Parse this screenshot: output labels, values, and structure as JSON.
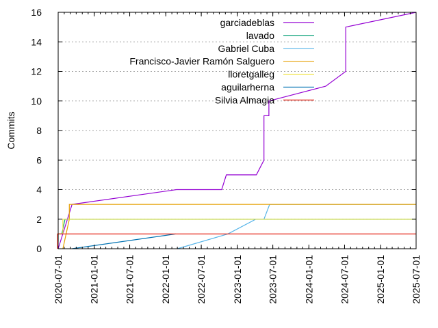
{
  "chart_data": {
    "type": "line",
    "title": "",
    "xlabel": "",
    "ylabel": "Commits",
    "ylim": [
      0,
      16
    ],
    "xlim": [
      "2020-07-01",
      "2025-07-01"
    ],
    "yticks": [
      "0",
      "2",
      "4",
      "6",
      "8",
      "10",
      "12",
      "14",
      "16"
    ],
    "xticks": [
      "2020-07-01",
      "2021-01-01",
      "2021-07-01",
      "2022-01-01",
      "2022-07-01",
      "2023-01-01",
      "2023-07-01",
      "2024-01-01",
      "2024-07-01",
      "2025-01-01",
      "2025-07-01"
    ],
    "grid": "horizontal dotted",
    "legend_placement": "top-center",
    "series": [
      {
        "name": "garciadeblas",
        "color": "#9400d3",
        "points": [
          [
            "2020-07-01",
            0
          ],
          [
            "2020-09-10",
            3
          ],
          [
            "2022-02-25",
            4
          ],
          [
            "2022-10-13",
            4
          ],
          [
            "2022-11-06",
            5
          ],
          [
            "2023-04-08",
            5
          ],
          [
            "2023-05-17",
            6
          ],
          [
            "2023-05-17",
            9
          ],
          [
            "2023-06-11",
            9
          ],
          [
            "2023-06-11",
            10
          ],
          [
            "2024-03-27",
            11
          ],
          [
            "2024-07-07",
            12
          ],
          [
            "2024-07-07",
            15
          ],
          [
            "2025-07-01",
            16
          ]
        ]
      },
      {
        "name": "lavado",
        "color": "#009e73",
        "points": [
          [
            "2020-07-01",
            0.5
          ],
          [
            "2020-07-01",
            1
          ],
          [
            "2020-07-20",
            1
          ],
          [
            "2020-08-05",
            2
          ],
          [
            "2025-07-01",
            2
          ]
        ]
      },
      {
        "name": "Gabriel Cuba",
        "color": "#56b4e9",
        "points": [
          [
            "2022-03-01",
            0
          ],
          [
            "2022-11-13",
            1
          ],
          [
            "2023-04-05",
            2
          ],
          [
            "2023-05-17",
            2
          ],
          [
            "2023-06-15",
            3
          ],
          [
            "2025-07-01",
            3
          ]
        ]
      },
      {
        "name": "Francisco-Javier Ramón Salguero",
        "color": "#e69f00",
        "points": [
          [
            "2020-07-25",
            0
          ],
          [
            "2020-08-27",
            2
          ],
          [
            "2020-08-27",
            3
          ],
          [
            "2025-07-01",
            3
          ]
        ]
      },
      {
        "name": "lloretgalleg",
        "color": "#f0e442",
        "points": [
          [
            "2020-06-28",
            0
          ],
          [
            "2020-06-28",
            1
          ],
          [
            "2020-07-25",
            1
          ],
          [
            "2020-07-25",
            2
          ],
          [
            "2025-07-01",
            2
          ]
        ]
      },
      {
        "name": "aguilarherna",
        "color": "#0072b2",
        "points": [
          [
            "2020-09-10",
            0
          ],
          [
            "2022-02-20",
            1
          ]
        ]
      },
      {
        "name": "Silvia Almagia",
        "color": "#e51e10",
        "points": [
          [
            "2020-06-28",
            0
          ],
          [
            "2020-06-28",
            1
          ],
          [
            "2025-07-01",
            1
          ]
        ]
      }
    ]
  }
}
